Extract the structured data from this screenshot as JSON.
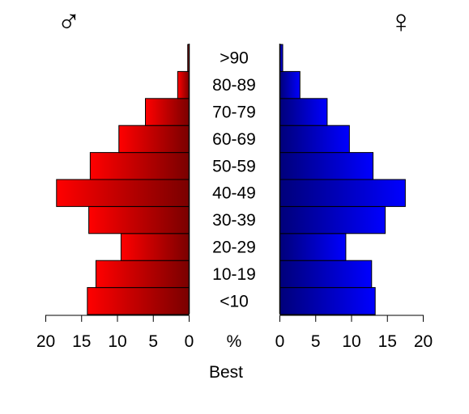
{
  "chart_data": {
    "type": "bar",
    "orientation": "horizontal",
    "subtype": "population-pyramid",
    "categories": [
      "<10",
      "10-19",
      "20-29",
      "30-39",
      "40-49",
      "50-59",
      "60-69",
      "70-79",
      "80-89",
      ">90"
    ],
    "series": [
      {
        "symbol": "♂",
        "side": "left",
        "values": [
          14.2,
          13.0,
          9.5,
          14.0,
          18.5,
          13.8,
          9.8,
          6.1,
          1.6,
          0.2
        ],
        "gradient": [
          "#ff0000",
          "#7a0000"
        ]
      },
      {
        "symbol": "♀",
        "side": "right",
        "values": [
          13.3,
          12.8,
          9.2,
          14.7,
          17.5,
          13.0,
          9.7,
          6.6,
          2.8,
          0.4
        ],
        "gradient": [
          "#00007a",
          "#0000ff"
        ]
      }
    ],
    "xlim": [
      0,
      20
    ],
    "ticks": [
      "20",
      "15",
      "10",
      "5",
      "0"
    ],
    "right_ticks": [
      "0",
      "5",
      "10",
      "15",
      "20"
    ],
    "unit_label": "%",
    "xlabel": "Best",
    "grid": false
  }
}
